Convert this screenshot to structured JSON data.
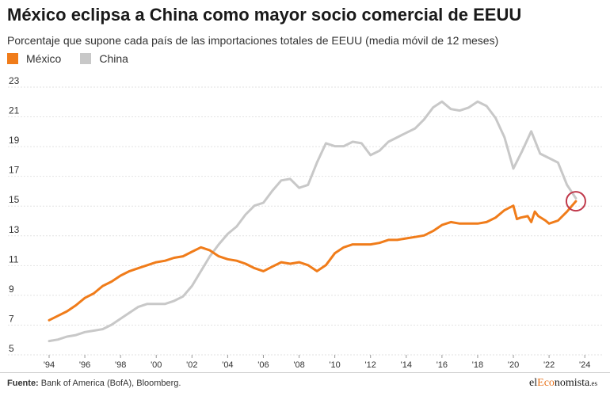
{
  "header": {
    "title": "México eclipsa a China como mayor socio comercial de EEUU",
    "subtitle": "Porcentaje que supone cada país de las importaciones totales de EEUU (media móvil de 12 meses)"
  },
  "footer": {
    "source_label": "Fuente:",
    "source_text": " Bank of America (BofA), Bloomberg.",
    "logo_pre": "el",
    "logo_accent": "Eco",
    "logo_post": "nomista",
    "logo_suffix": ".es"
  },
  "chart_data": {
    "type": "line",
    "ylim": [
      5,
      23
    ],
    "yticks": [
      5,
      7,
      9,
      11,
      13,
      15,
      17,
      19,
      21,
      23
    ],
    "xlim": [
      1994,
      2025.5
    ],
    "xticks": [
      1994,
      1996,
      1998,
      2000,
      2002,
      2004,
      2006,
      2008,
      2010,
      2012,
      2014,
      2016,
      2018,
      2020,
      2022,
      2024
    ],
    "xtick_labels": [
      "'94",
      "'96",
      "'98",
      "'00",
      "'02",
      "'04",
      "'06",
      "'08",
      "'10",
      "'12",
      "'14",
      "'16",
      "'18",
      "'20",
      "'22",
      "'24"
    ],
    "grid": true,
    "legend_position": "top-left",
    "highlight_circle": {
      "x": 2023.5,
      "y": 14.9,
      "color": "#c0394b"
    },
    "series": [
      {
        "name": "México",
        "color": "#f07c1a",
        "x": [
          1994.0,
          1994.5,
          1995.0,
          1995.5,
          1996.0,
          1996.5,
          1997.0,
          1997.5,
          1998.0,
          1998.5,
          1999.0,
          1999.5,
          2000.0,
          2000.5,
          2001.0,
          2001.5,
          2002.0,
          2002.5,
          2003.0,
          2003.5,
          2004.0,
          2004.5,
          2005.0,
          2005.5,
          2006.0,
          2006.5,
          2007.0,
          2007.5,
          2008.0,
          2008.5,
          2009.0,
          2009.5,
          2010.0,
          2010.5,
          2011.0,
          2011.5,
          2012.0,
          2012.5,
          2013.0,
          2013.5,
          2014.0,
          2014.5,
          2015.0,
          2015.5,
          2016.0,
          2016.5,
          2017.0,
          2017.5,
          2018.0,
          2018.5,
          2019.0,
          2019.5,
          2020.0,
          2020.2,
          2020.4,
          2020.8,
          2021.0,
          2021.2,
          2021.4,
          2021.8,
          2022.0,
          2022.5,
          2023.0,
          2023.5
        ],
        "y": [
          6.9,
          7.2,
          7.5,
          7.9,
          8.4,
          8.7,
          9.2,
          9.5,
          9.9,
          10.2,
          10.4,
          10.6,
          10.8,
          10.9,
          11.1,
          11.2,
          11.5,
          11.8,
          11.6,
          11.2,
          11.0,
          10.9,
          10.7,
          10.4,
          10.2,
          10.5,
          10.8,
          10.7,
          10.8,
          10.6,
          10.2,
          10.6,
          11.4,
          11.8,
          12.0,
          12.0,
          12.0,
          12.1,
          12.3,
          12.3,
          12.4,
          12.5,
          12.6,
          12.9,
          13.3,
          13.5,
          13.4,
          13.4,
          13.4,
          13.5,
          13.8,
          14.3,
          14.6,
          13.7,
          13.8,
          13.9,
          13.5,
          14.2,
          13.9,
          13.6,
          13.4,
          13.6,
          14.2,
          14.9
        ]
      },
      {
        "name": "China",
        "color": "#c8c8c8",
        "x": [
          1994.0,
          1994.5,
          1995.0,
          1995.5,
          1996.0,
          1996.5,
          1997.0,
          1997.5,
          1998.0,
          1998.5,
          1999.0,
          1999.5,
          2000.0,
          2000.5,
          2001.0,
          2001.5,
          2002.0,
          2002.5,
          2003.0,
          2003.5,
          2004.0,
          2004.5,
          2005.0,
          2005.5,
          2006.0,
          2006.5,
          2007.0,
          2007.5,
          2008.0,
          2008.5,
          2009.0,
          2009.5,
          2010.0,
          2010.5,
          2011.0,
          2011.5,
          2012.0,
          2012.5,
          2013.0,
          2013.5,
          2014.0,
          2014.5,
          2015.0,
          2015.5,
          2016.0,
          2016.5,
          2017.0,
          2017.5,
          2018.0,
          2018.5,
          2019.0,
          2019.5,
          2020.0,
          2020.5,
          2021.0,
          2021.5,
          2022.0,
          2022.5,
          2023.0,
          2023.5
        ],
        "y": [
          5.5,
          5.6,
          5.8,
          5.9,
          6.1,
          6.2,
          6.3,
          6.6,
          7.0,
          7.4,
          7.8,
          8.0,
          8.0,
          8.0,
          8.2,
          8.5,
          9.2,
          10.2,
          11.2,
          12.0,
          12.7,
          13.2,
          14.0,
          14.6,
          14.8,
          15.6,
          16.3,
          16.4,
          15.8,
          16.0,
          17.5,
          18.8,
          18.6,
          18.6,
          18.9,
          18.8,
          18.0,
          18.3,
          18.9,
          19.2,
          19.5,
          19.8,
          20.4,
          21.2,
          21.6,
          21.1,
          21.0,
          21.2,
          21.6,
          21.3,
          20.5,
          19.2,
          17.1,
          18.3,
          19.6,
          18.1,
          17.8,
          17.5,
          16.0,
          15.1
        ]
      }
    ]
  }
}
